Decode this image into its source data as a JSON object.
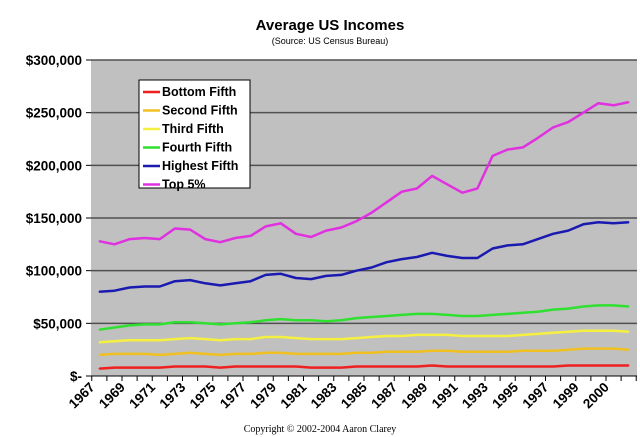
{
  "chart_data": {
    "type": "line",
    "title": "Average US Incomes",
    "subtitle": "(Source: US Census Bureau)",
    "footer": "Copyright © 2002-2004 Aaron Clarey",
    "xlabel": "",
    "ylabel": "",
    "ylim": [
      0,
      300000
    ],
    "y_ticks": [
      0,
      50000,
      100000,
      150000,
      200000,
      250000,
      300000
    ],
    "y_tick_labels": [
      "$-",
      "$50,000",
      "$100,000",
      "$150,000",
      "$200,000",
      "$250,000",
      "$300,000"
    ],
    "x_tick_labels": [
      "1967",
      "1969",
      "1971",
      "1973",
      "1975",
      "1977",
      "1979",
      "1981",
      "1983",
      "1985",
      "1987",
      "1989",
      "1991",
      "1993",
      "1995",
      "1997",
      "1999",
      "2000"
    ],
    "x": [
      1967,
      1968,
      1969,
      1970,
      1971,
      1972,
      1973,
      1974,
      1975,
      1976,
      1977,
      1978,
      1979,
      1980,
      1981,
      1982,
      1983,
      1984,
      1985,
      1986,
      1987,
      1988,
      1989,
      1990,
      1991,
      1992,
      1993,
      1994,
      1995,
      1996,
      1997,
      1998,
      1999,
      2000,
      2001,
      2002
    ],
    "grid": true,
    "legend_position": "top-left",
    "series": [
      {
        "name": "Bottom Fifth",
        "color": "#ee2020",
        "values": [
          7,
          8,
          8,
          8,
          8,
          9,
          9,
          9,
          8,
          9,
          9,
          9,
          9,
          9,
          8,
          8,
          8,
          9,
          9,
          9,
          9,
          9,
          10,
          9,
          9,
          9,
          9,
          9,
          9,
          9,
          9,
          10,
          10,
          10,
          10,
          10
        ]
      },
      {
        "name": "Second Fifth",
        "color": "#f0c020",
        "values": [
          20,
          21,
          21,
          21,
          20,
          21,
          22,
          21,
          20,
          21,
          21,
          22,
          22,
          21,
          21,
          21,
          21,
          22,
          22,
          23,
          23,
          23,
          24,
          24,
          23,
          23,
          23,
          23,
          24,
          24,
          24,
          25,
          26,
          26,
          26,
          25
        ]
      },
      {
        "name": "Third Fifth",
        "color": "#f4f040",
        "values": [
          32,
          33,
          34,
          34,
          34,
          35,
          36,
          35,
          34,
          35,
          35,
          37,
          37,
          36,
          35,
          35,
          35,
          36,
          37,
          38,
          38,
          39,
          39,
          39,
          38,
          38,
          38,
          38,
          39,
          40,
          41,
          42,
          43,
          43,
          43,
          42
        ]
      },
      {
        "name": "Fourth Fifth",
        "color": "#30e030",
        "values": [
          44,
          46,
          48,
          49,
          49,
          51,
          51,
          50,
          49,
          50,
          51,
          53,
          54,
          53,
          53,
          52,
          53,
          55,
          56,
          57,
          58,
          59,
          59,
          58,
          57,
          57,
          58,
          59,
          60,
          61,
          63,
          64,
          66,
          67,
          67,
          66
        ]
      },
      {
        "name": "Highest Fifth",
        "color": "#1a1ab0",
        "values": [
          80,
          81,
          84,
          85,
          85,
          90,
          91,
          88,
          86,
          88,
          90,
          96,
          97,
          93,
          92,
          95,
          96,
          100,
          103,
          108,
          111,
          113,
          117,
          114,
          112,
          112,
          121,
          124,
          125,
          130,
          135,
          138,
          144,
          146,
          145,
          146
        ]
      },
      {
        "name": "Top 5%",
        "color": "#e030e0",
        "values": [
          128,
          125,
          130,
          131,
          130,
          140,
          139,
          130,
          127,
          131,
          133,
          142,
          145,
          135,
          132,
          138,
          141,
          147,
          155,
          165,
          175,
          178,
          190,
          182,
          174,
          178,
          209,
          215,
          217,
          226,
          236,
          241,
          250,
          259,
          257,
          260
        ]
      }
    ],
    "value_unit": "thousands of dollars"
  }
}
